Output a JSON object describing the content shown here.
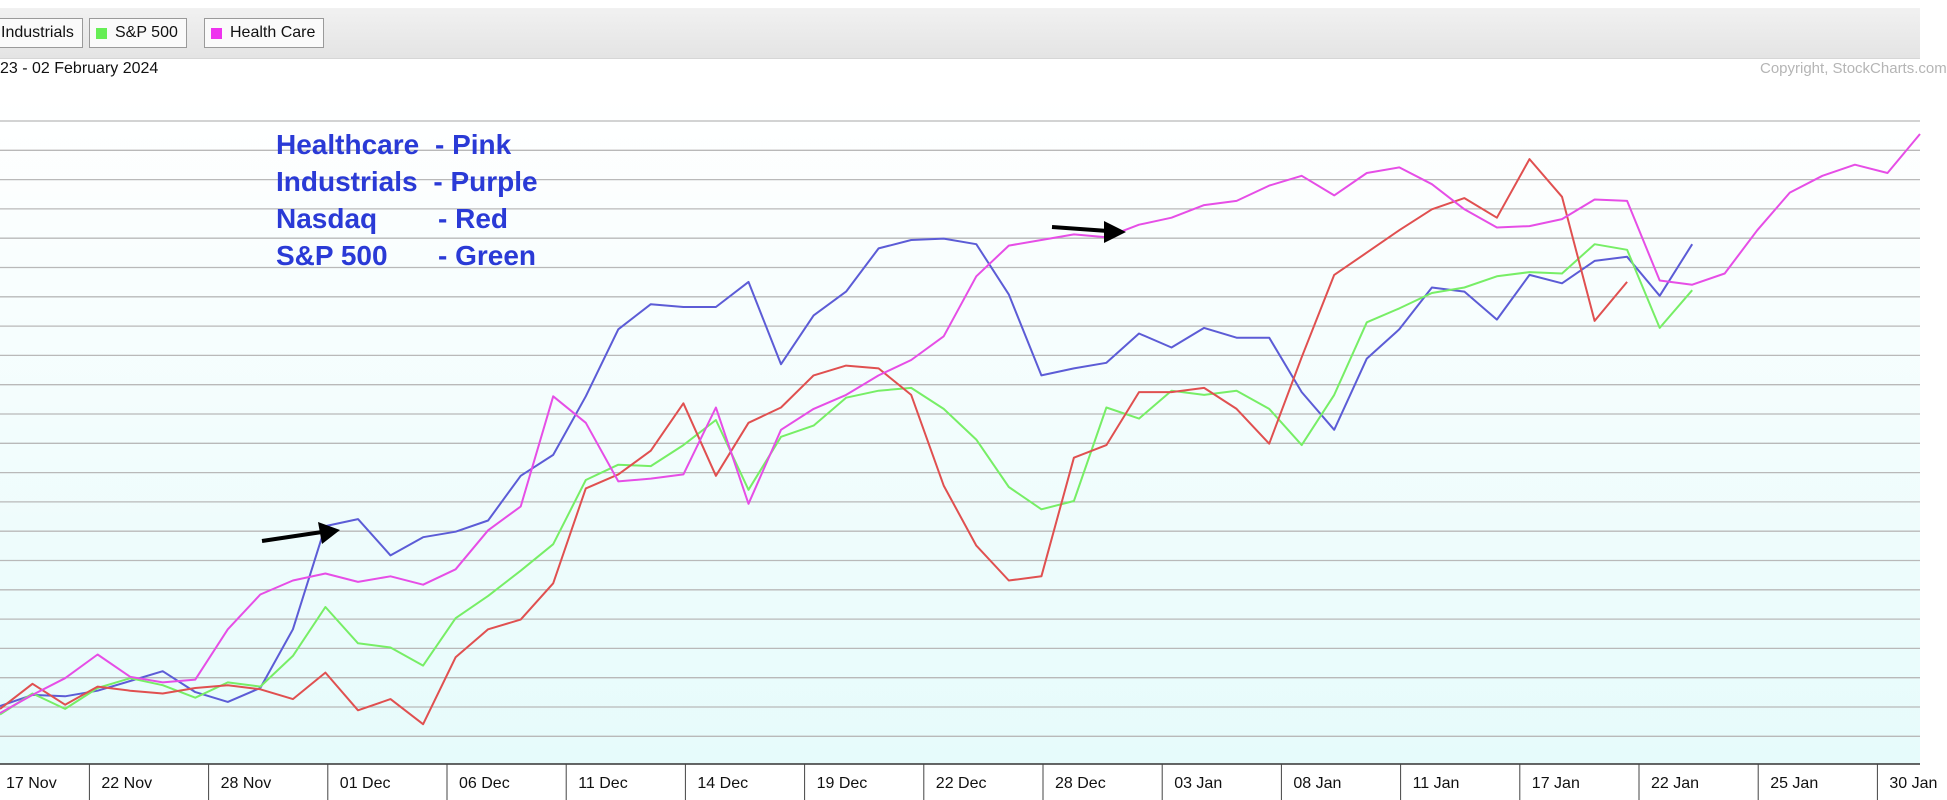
{
  "toolbar": {
    "legend": [
      {
        "label": "Industrials",
        "color": "#5b5bd6"
      },
      {
        "label": "S&P 500",
        "color": "#66ee55"
      },
      {
        "label": "Health Care",
        "color": "#ee33ee"
      }
    ],
    "date_range": "23 - 02 February 2024",
    "copyright": "Copyright, StockCharts.com"
  },
  "annotations": {
    "lines": [
      {
        "label": "Healthcare",
        "color_name": "- Pink"
      },
      {
        "label": "Industrials",
        "color_name": "- Purple"
      },
      {
        "label": "Nasdaq",
        "color_name": "- Red"
      },
      {
        "label": "S&P 500",
        "color_name": "- Green"
      }
    ],
    "arrow_1": "arrow-right-icon",
    "arrow_2": "arrow-right-icon"
  },
  "chart_data": {
    "type": "line",
    "title": "",
    "xlabel": "",
    "ylabel": "",
    "x_tick_labels": [
      "17 Nov",
      "22 Nov",
      "28 Nov",
      "01 Dec",
      "06 Dec",
      "11 Dec",
      "14 Dec",
      "19 Dec",
      "22 Dec",
      "28 Dec",
      "03 Jan",
      "08 Jan",
      "11 Jan",
      "17 Jan",
      "22 Jan",
      "25 Jan",
      "30 Jan"
    ],
    "x_tick_indices": [
      0,
      3,
      7,
      11,
      15,
      19,
      23,
      27,
      31,
      35,
      39,
      43,
      47,
      51,
      55,
      59,
      63
    ],
    "ylim": [
      0,
      44
    ],
    "grid": true,
    "background_gradient": [
      "#ffffff",
      "#e6fbfb"
    ],
    "series": [
      {
        "name": "Industrials",
        "color": "#5c5cd6",
        "values": [
          2.0,
          2.8,
          2.7,
          3.1,
          3.8,
          4.5,
          3.0,
          2.3,
          3.3,
          7.5,
          14.9,
          15.4,
          12.8,
          14.1,
          14.5,
          15.3,
          18.5,
          20.0,
          24.2,
          29.0,
          30.8,
          30.6,
          30.6,
          32.4,
          26.5,
          30.0,
          31.7,
          34.8,
          35.4,
          35.5,
          35.1,
          31.5,
          25.7,
          26.2,
          26.6,
          28.7,
          27.7,
          29.1,
          28.4,
          28.4,
          24.5,
          21.8,
          26.9,
          29.0,
          32.0,
          31.7,
          29.7,
          32.9,
          32.3,
          33.9,
          34.2,
          31.4,
          35.1
        ],
        "note": "industrials"
      },
      {
        "name": "S&P 500",
        "color": "#77ee66",
        "values": [
          1.4,
          2.9,
          1.8,
          3.3,
          4.0,
          3.5,
          2.6,
          3.7,
          3.4,
          5.6,
          9.1,
          6.5,
          6.2,
          4.9,
          8.3,
          9.9,
          11.7,
          13.6,
          18.2,
          19.3,
          19.2,
          20.7,
          22.5,
          17.5,
          21.3,
          22.1,
          24.1,
          24.6,
          24.8,
          23.3,
          21.1,
          17.7,
          16.1,
          16.7,
          23.4,
          22.6,
          24.6,
          24.3,
          24.6,
          23.3,
          20.7,
          24.3,
          29.5,
          30.5,
          31.6,
          32.0,
          32.8,
          33.1,
          33.0,
          35.1,
          34.7,
          29.1,
          31.8
        ],
        "note": "sp500"
      },
      {
        "name": "Nasdaq",
        "color": "#e05050",
        "values": [
          1.8,
          3.6,
          2.1,
          3.4,
          3.1,
          2.9,
          3.3,
          3.5,
          3.2,
          2.5,
          4.4,
          1.7,
          2.5,
          0.7,
          5.5,
          7.5,
          8.2,
          10.8,
          17.6,
          18.6,
          20.3,
          23.7,
          18.5,
          22.3,
          23.4,
          25.7,
          26.4,
          26.2,
          24.3,
          17.8,
          13.5,
          11.0,
          11.3,
          19.8,
          20.7,
          24.5,
          24.5,
          24.8,
          23.3,
          20.8,
          27.0,
          32.9,
          34.5,
          36.1,
          37.6,
          38.4,
          37.0,
          41.2,
          38.5,
          29.6,
          32.4
        ],
        "note": "nasdaq"
      },
      {
        "name": "Health Care",
        "color": "#e64ee6",
        "values": [
          1.5,
          2.8,
          4.0,
          5.7,
          4.1,
          3.7,
          3.9,
          7.5,
          10.0,
          11.0,
          11.5,
          10.9,
          11.3,
          10.7,
          11.8,
          14.6,
          16.3,
          24.2,
          22.3,
          18.1,
          18.3,
          18.6,
          23.4,
          16.5,
          21.8,
          23.3,
          24.3,
          25.7,
          26.8,
          28.5,
          32.8,
          35.0,
          35.4,
          35.8,
          35.6,
          36.5,
          37.0,
          37.9,
          38.2,
          39.3,
          40.0,
          38.6,
          40.2,
          40.6,
          39.4,
          37.6,
          36.3,
          36.4,
          36.9,
          38.3,
          38.2,
          32.5,
          32.2,
          33.0,
          36.1,
          38.8,
          40.0,
          40.8,
          40.2,
          43.0
        ],
        "note": "healthcare"
      }
    ]
  }
}
